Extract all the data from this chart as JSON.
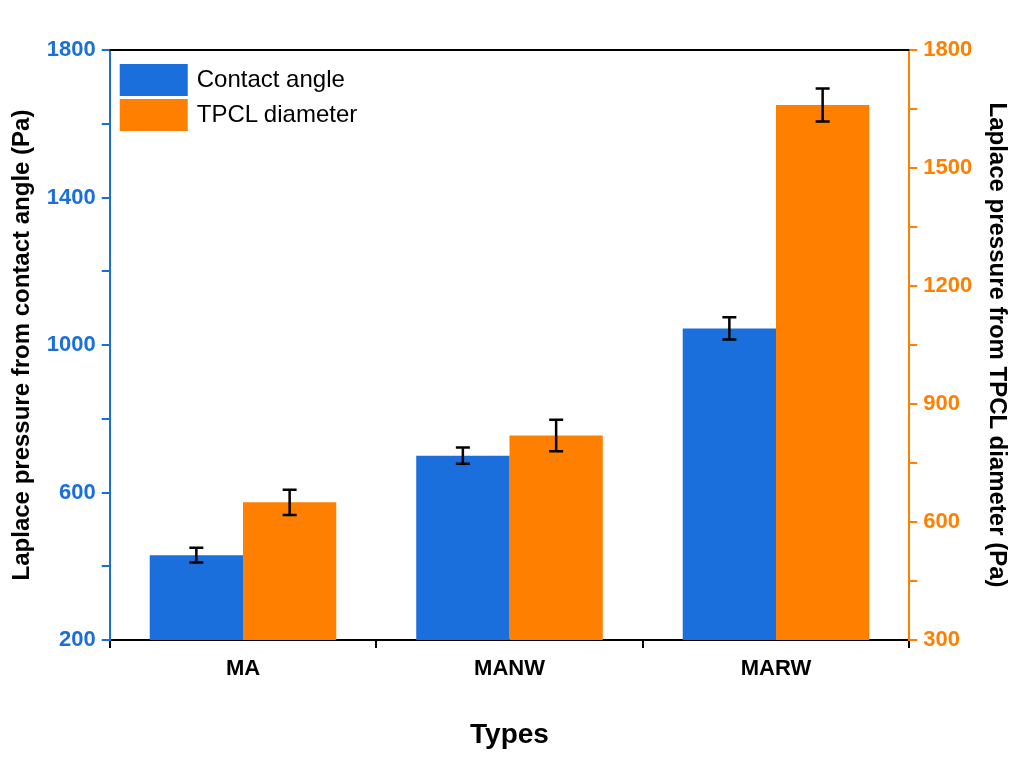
{
  "chart_data": {
    "type": "bar",
    "xlabel": "Types",
    "ylabel": "Laplace pressure from contact angle (Pa)",
    "y2label": "Laplace pressure from TPCL diameter (Pa)",
    "categories": [
      "MA",
      "MANW",
      "MARW"
    ],
    "series": [
      {
        "name": "Contact angle",
        "color": "#1a6fdc",
        "values": [
          430,
          700,
          1045
        ],
        "errors": [
          20,
          22,
          30
        ]
      },
      {
        "name": "TPCL diameter",
        "color": "#ff8000",
        "axis": "y2",
        "values": [
          650,
          820,
          1660
        ],
        "errors": [
          32,
          40,
          42
        ]
      }
    ],
    "ylim": [
      200,
      1800
    ],
    "yticks": [
      200,
      {
        "value": 400,
        "label": null
      },
      600,
      {
        "value": 800,
        "label": null
      },
      1000,
      {
        "value": 1200,
        "label": null
      },
      1400,
      {
        "value": 1600,
        "label": null
      },
      1800
    ],
    "y2lim": [
      300,
      1800
    ],
    "y2ticks": [
      300,
      {
        "value": 450,
        "label": null
      },
      600,
      {
        "value": 750,
        "label": null
      },
      900,
      {
        "value": 1050,
        "label": null
      },
      1200,
      {
        "value": 1350,
        "label": null
      },
      1500,
      {
        "value": 1650,
        "label": null
      },
      1800
    ],
    "grid": false,
    "legend": "top left"
  }
}
